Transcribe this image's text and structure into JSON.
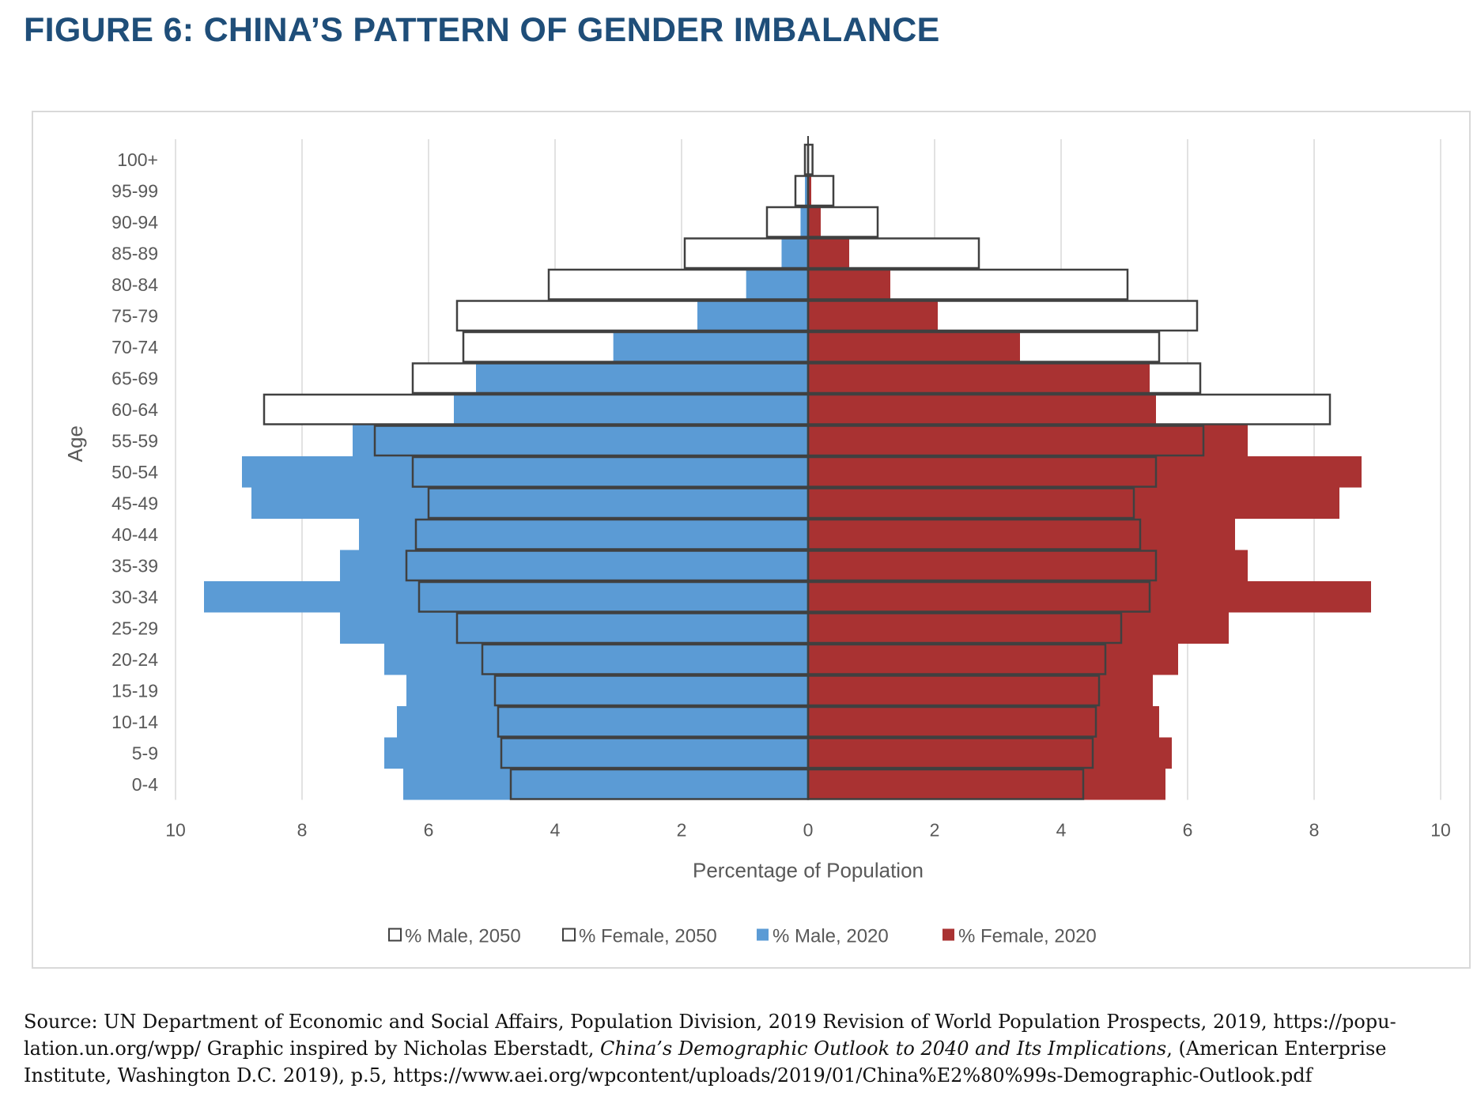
{
  "title": "FIGURE 6: CHINA’S PATTERN OF GENDER IMBALANCE",
  "colors": {
    "title": "#1f4e79",
    "male_2020": "#5b9bd5",
    "female_2020": "#a93232",
    "outline_2050": "#404040"
  },
  "chart_data": {
    "type": "bar",
    "orientation": "horizontal-population-pyramid",
    "title": "",
    "xlabel": "Percentage of Population",
    "ylabel": "Age",
    "xlim": [
      -10,
      10
    ],
    "x_ticks": [
      -10,
      -8,
      -6,
      -4,
      -2,
      0,
      2,
      4,
      6,
      8,
      10
    ],
    "x_tick_labels": [
      "10",
      "8",
      "6",
      "4",
      "2",
      "0",
      "2",
      "4",
      "6",
      "8",
      "10"
    ],
    "grid": "vertical",
    "legend_position": "bottom",
    "categories": [
      "100+",
      "95-99",
      "90-94",
      "85-89",
      "80-84",
      "75-79",
      "70-74",
      "65-69",
      "60-64",
      "55-59",
      "50-54",
      "45-49",
      "40-44",
      "35-39",
      "30-34",
      "25-29",
      "20-24",
      "15-19",
      "10-14",
      "5-9",
      "0-4"
    ],
    "series": [
      {
        "name": "% Male, 2050",
        "side": "left",
        "style": "outline",
        "values": [
          0.05,
          0.2,
          0.65,
          1.95,
          4.1,
          5.55,
          5.45,
          6.25,
          8.6,
          6.85,
          6.25,
          6.0,
          6.2,
          6.35,
          6.15,
          5.55,
          5.15,
          4.95,
          4.9,
          4.85,
          4.7
        ]
      },
      {
        "name": "% Female, 2050",
        "side": "right",
        "style": "outline",
        "values": [
          0.07,
          0.4,
          1.1,
          2.7,
          5.05,
          6.15,
          5.55,
          6.2,
          8.25,
          6.25,
          5.5,
          5.15,
          5.25,
          5.5,
          5.4,
          4.95,
          4.7,
          4.6,
          4.55,
          4.5,
          4.35
        ]
      },
      {
        "name": "% Male, 2020",
        "side": "left",
        "style": "fill",
        "values": [
          0.0,
          0.05,
          0.12,
          0.42,
          0.98,
          1.75,
          3.08,
          5.25,
          5.6,
          7.2,
          8.95,
          8.8,
          7.1,
          7.4,
          9.55,
          7.4,
          6.7,
          6.35,
          6.5,
          6.7,
          6.4
        ]
      },
      {
        "name": "% Female, 2020",
        "side": "right",
        "style": "fill",
        "values": [
          0.0,
          0.05,
          0.2,
          0.65,
          1.3,
          2.05,
          3.35,
          5.4,
          5.5,
          6.95,
          8.75,
          8.4,
          6.75,
          6.95,
          8.9,
          6.65,
          5.85,
          5.45,
          5.55,
          5.75,
          5.65
        ]
      }
    ]
  },
  "source": {
    "line1": "Source: UN Department of Economic and Social Affairs, Population Division, 2019 Revision of World Population Prospects, 2019, https://popu-",
    "line2_prefix": "lation.un.org/wpp/ Graphic inspired by Nicholas Eberstadt, ",
    "line2_italic": "China’s Demographic Outlook to 2040 and Its Implications",
    "line2_suffix": ", (American Enterprise",
    "line3": "Institute, Washington D.C. 2019), p.5, https://www.aei.org/wpcontent/uploads/2019/01/China%E2%80%99s-Demographic-Outlook.pdf"
  }
}
